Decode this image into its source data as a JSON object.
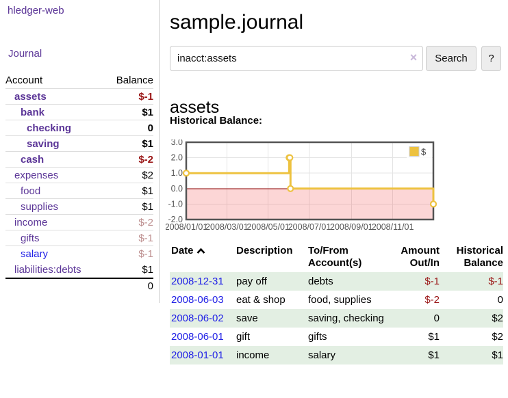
{
  "app": {
    "brand": "hledger-web"
  },
  "nav": {
    "journal": "Journal"
  },
  "sidebar": {
    "columns": {
      "account": "Account",
      "balance": "Balance"
    },
    "accounts": [
      {
        "name": "assets",
        "balance": "$-1",
        "depth": 1,
        "style": "bold",
        "balance_style": "neg"
      },
      {
        "name": "bank",
        "balance": "$1",
        "depth": 2,
        "style": "bold",
        "balance_style": "pos"
      },
      {
        "name": "checking",
        "balance": "0",
        "depth": 3,
        "style": "bold",
        "balance_style": "pos"
      },
      {
        "name": "saving",
        "balance": "$1",
        "depth": 3,
        "style": "bold",
        "balance_style": "pos"
      },
      {
        "name": "cash",
        "balance": "$-2",
        "depth": 2,
        "style": "bold",
        "balance_style": "neg"
      },
      {
        "name": "expenses",
        "balance": "$2",
        "depth": 1,
        "style": "normal",
        "balance_style": "pos"
      },
      {
        "name": "food",
        "balance": "$1",
        "depth": 2,
        "style": "normal",
        "balance_style": "pos"
      },
      {
        "name": "supplies",
        "balance": "$1",
        "depth": 2,
        "style": "normal",
        "balance_style": "pos"
      },
      {
        "name": "income",
        "balance": "$-2",
        "depth": 1,
        "style": "normal",
        "balance_style": "mutedneg"
      },
      {
        "name": "gifts",
        "balance": "$-1",
        "depth": 2,
        "style": "normal",
        "balance_style": "mutedneg"
      },
      {
        "name": "salary",
        "balance": "$-1",
        "depth": 2,
        "style": "normal-blue",
        "balance_style": "mutedneg"
      },
      {
        "name": "liabilities:debts",
        "balance": "$1",
        "depth": 1,
        "style": "normal",
        "balance_style": "pos"
      }
    ],
    "total": "0"
  },
  "main": {
    "title": "sample.journal",
    "search": {
      "value": "inacct:assets",
      "clear": "×",
      "button": "Search",
      "help": "?"
    },
    "account_title": "assets",
    "chart_title": "Historical Balance:"
  },
  "chart_data": {
    "type": "line",
    "steps": true,
    "title": "Historical Balance",
    "series": [
      {
        "name": "$",
        "color": "#edc240",
        "points": [
          [
            "2008-01-01",
            1
          ],
          [
            "2008-06-01",
            2
          ],
          [
            "2008-06-02",
            2
          ],
          [
            "2008-06-03",
            0
          ],
          [
            "2008-12-31",
            -1
          ]
        ]
      }
    ],
    "ylim": [
      -2,
      3
    ],
    "ytick_labels": [
      "3.0",
      "2.0",
      "1.0",
      "0.0",
      "-1.0",
      "-2.0"
    ],
    "yticks": [
      3,
      2,
      1,
      0,
      -1,
      -2
    ],
    "xrange": [
      "2008-01-01",
      "2008-12-31"
    ],
    "xticks": [
      {
        "date": "2008-01-01",
        "label": "2008/01/01"
      },
      {
        "date": "2008-03-01",
        "label": "2008/03/01"
      },
      {
        "date": "2008-05-01",
        "label": "2008/05/01"
      },
      {
        "date": "2008-07-01",
        "label": "2008/07/01"
      },
      {
        "date": "2008-09-01",
        "label": "2008/09/01"
      },
      {
        "date": "2008-11-01",
        "label": "2008/11/01"
      }
    ],
    "legend": {
      "label": "$",
      "position": "top-right"
    },
    "grid": true,
    "negative_region_color": "#fbd6d6",
    "zero_line_color": "#8b0000",
    "axis_text_color": "#545454"
  },
  "register": {
    "headers": {
      "date": "Date",
      "description": "Description",
      "accounts": "To/From Account(s)",
      "amount": "Amount Out/In",
      "balance": "Historical Balance"
    },
    "rows": [
      {
        "date": "2008-12-31",
        "description": "pay off",
        "accounts": "debts",
        "amount": "$-1",
        "amount_style": "neg",
        "balance": "$-1",
        "balance_style": "neg"
      },
      {
        "date": "2008-06-03",
        "description": "eat & shop",
        "accounts": "food, supplies",
        "amount": "$-2",
        "amount_style": "neg",
        "balance": "0",
        "balance_style": "pos"
      },
      {
        "date": "2008-06-02",
        "description": "save",
        "accounts": "saving, checking",
        "amount": "0",
        "amount_style": "pos",
        "balance": "$2",
        "balance_style": "pos"
      },
      {
        "date": "2008-06-01",
        "description": "gift",
        "accounts": "gifts",
        "amount": "$1",
        "amount_style": "pos",
        "balance": "$2",
        "balance_style": "pos"
      },
      {
        "date": "2008-01-01",
        "description": "income",
        "accounts": "salary",
        "amount": "$1",
        "amount_style": "pos",
        "balance": "$1",
        "balance_style": "pos"
      }
    ]
  }
}
